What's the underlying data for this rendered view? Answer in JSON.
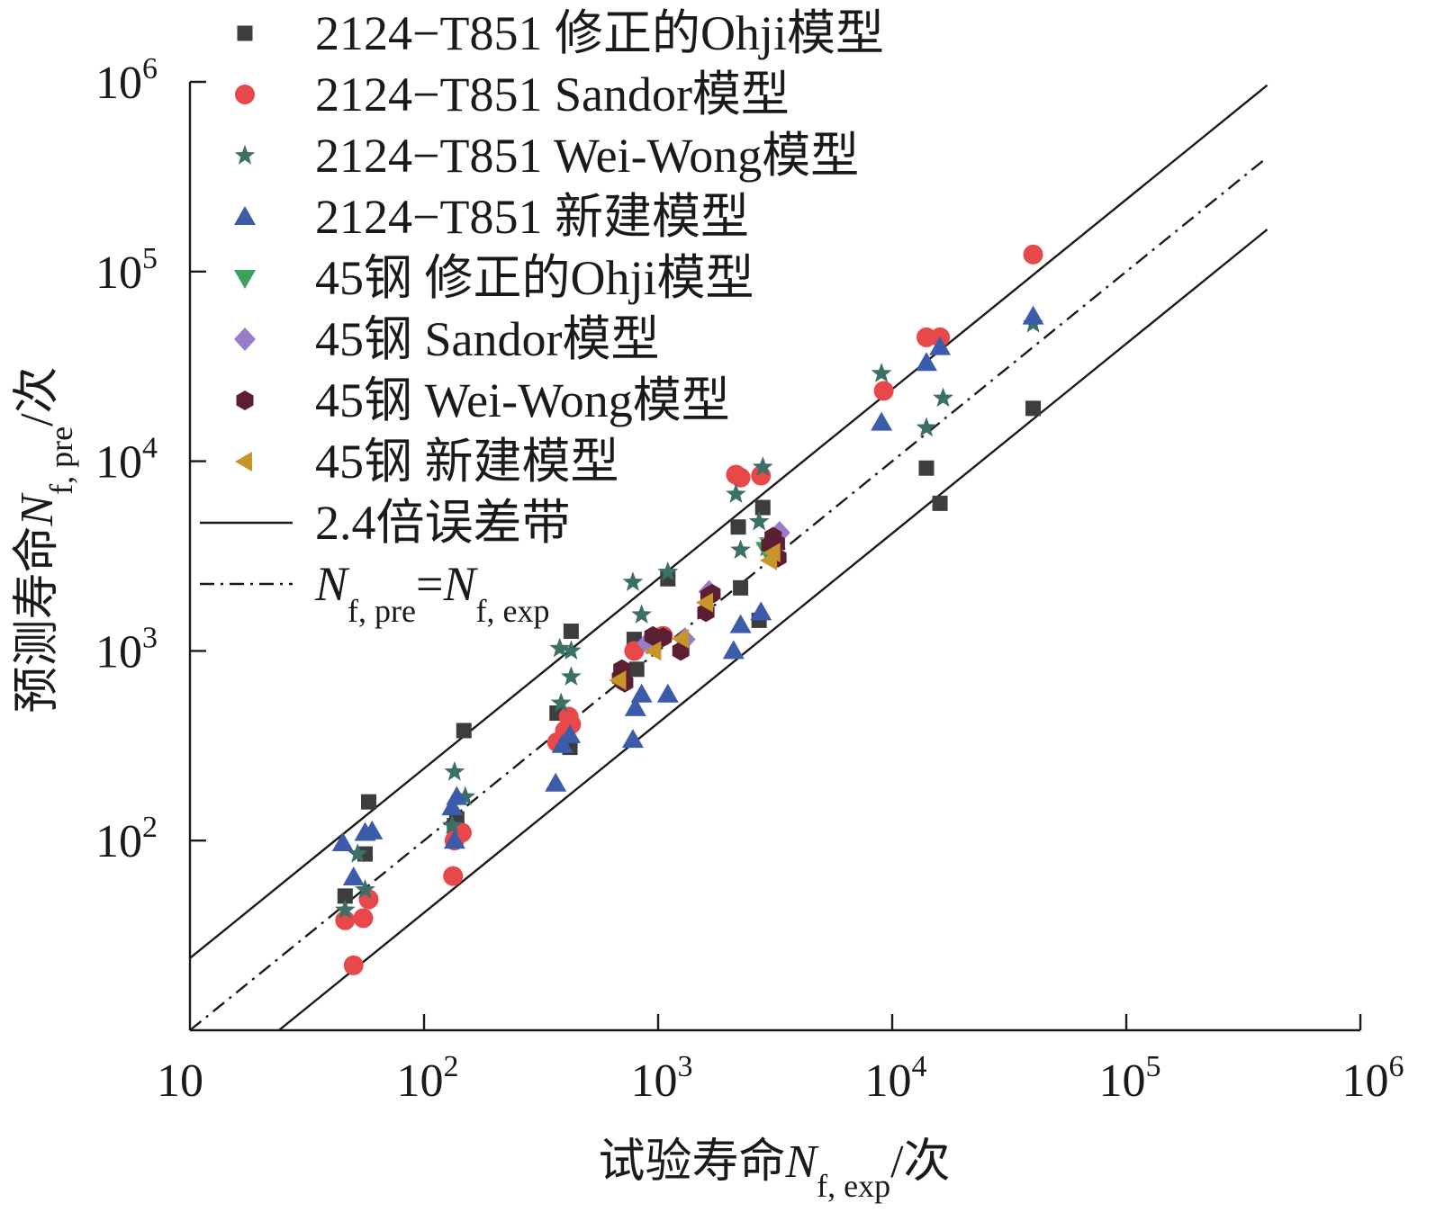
{
  "chart_data": {
    "type": "scatter",
    "scale": "log-log",
    "xlim": [
      10,
      1000000
    ],
    "ylim": [
      10,
      1000000
    ],
    "x_ticks": [
      10,
      100,
      1000,
      10000,
      100000,
      1000000
    ],
    "y_ticks": [
      100,
      1000,
      10000,
      100000,
      1000000
    ],
    "x_tick_labels": [
      {
        "base": "10",
        "exp": ""
      },
      {
        "base": "10",
        "exp": "2"
      },
      {
        "base": "10",
        "exp": "3"
      },
      {
        "base": "10",
        "exp": "4"
      },
      {
        "base": "10",
        "exp": "5"
      },
      {
        "base": "10",
        "exp": "6"
      }
    ],
    "y_tick_labels": [
      {
        "base": "10",
        "exp": "2"
      },
      {
        "base": "10",
        "exp": "3"
      },
      {
        "base": "10",
        "exp": "4"
      },
      {
        "base": "10",
        "exp": "5"
      },
      {
        "base": "10",
        "exp": "6"
      }
    ],
    "xlabel": {
      "prefix": "试验寿命",
      "var": "N",
      "sub": "f, exp",
      "suffix": "/次"
    },
    "ylabel": {
      "prefix": "预测寿命",
      "var": "N",
      "sub": "f, pre",
      "suffix": "/次"
    },
    "legend_position": "top-left",
    "reference_lines": [
      {
        "legend_text": "2.4倍误差带",
        "style": "solid",
        "color": "#1a1a1a",
        "factor": 2.4
      },
      {
        "legend_text": "",
        "legend_var1": "N",
        "legend_sub1": "f, pre",
        "legend_eq": "=",
        "legend_var2": "N",
        "legend_sub2": "f, exp",
        "style": "dashdot",
        "color": "#1a1a1a",
        "factor": 1.0
      },
      {
        "legend_text": "",
        "style": "solid",
        "color": "#1a1a1a",
        "factor": 0.4167
      }
    ],
    "series": [
      {
        "name": "2124−T851 修正的Ohji模型",
        "marker": "square",
        "color": "#3d3d3d",
        "points": [
          [
            46,
            51
          ],
          [
            56,
            85
          ],
          [
            58,
            160
          ],
          [
            148,
            380
          ],
          [
            135,
            120
          ],
          [
            138,
            130
          ],
          [
            370,
            470
          ],
          [
            425,
            1270
          ],
          [
            420,
            310
          ],
          [
            790,
            1150
          ],
          [
            810,
            800
          ],
          [
            1100,
            2400
          ],
          [
            2200,
            4500
          ],
          [
            2250,
            2150
          ],
          [
            2800,
            5700
          ],
          [
            2700,
            1450
          ],
          [
            14000,
            9200
          ],
          [
            16000,
            6000
          ],
          [
            40000,
            19000
          ]
        ]
      },
      {
        "name": "2124−T851 Sandor模型",
        "marker": "circle",
        "color": "#e8484a",
        "points": [
          [
            46,
            38
          ],
          [
            50,
            22
          ],
          [
            55,
            39
          ],
          [
            58,
            49
          ],
          [
            133,
            65
          ],
          [
            135,
            100
          ],
          [
            145,
            110
          ],
          [
            370,
            330
          ],
          [
            400,
            380
          ],
          [
            415,
            450
          ],
          [
            425,
            410
          ],
          [
            790,
            1000
          ],
          [
            1050,
            1200
          ],
          [
            2150,
            8500
          ],
          [
            2250,
            8200
          ],
          [
            2750,
            8400
          ],
          [
            9200,
            23500
          ],
          [
            14000,
            45000
          ],
          [
            16000,
            45000
          ],
          [
            40000,
            123000
          ]
        ]
      },
      {
        "name": "2124−T851 Wei-Wong模型",
        "marker": "star",
        "color": "#3c7066",
        "points": [
          [
            46,
            43
          ],
          [
            52,
            85
          ],
          [
            56,
            55
          ],
          [
            132,
            120
          ],
          [
            135,
            230
          ],
          [
            150,
            170
          ],
          [
            380,
            1030
          ],
          [
            385,
            530
          ],
          [
            425,
            1000
          ],
          [
            425,
            730
          ],
          [
            780,
            2300
          ],
          [
            850,
            1550
          ],
          [
            1100,
            2600
          ],
          [
            2150,
            6700
          ],
          [
            2250,
            3400
          ],
          [
            2800,
            9300
          ],
          [
            2700,
            4800
          ],
          [
            2900,
            3500
          ],
          [
            9000,
            29000
          ],
          [
            14000,
            15000
          ],
          [
            16500,
            21500
          ],
          [
            40000,
            53000
          ]
        ]
      },
      {
        "name": "2124−T851 新建模型",
        "marker": "triangle-up",
        "color": "#3c5cab",
        "points": [
          [
            45,
            97
          ],
          [
            50,
            64
          ],
          [
            56,
            110
          ],
          [
            60,
            112
          ],
          [
            135,
            100
          ],
          [
            132,
            150
          ],
          [
            138,
            170
          ],
          [
            365,
            200
          ],
          [
            390,
            320
          ],
          [
            420,
            360
          ],
          [
            780,
            340
          ],
          [
            800,
            500
          ],
          [
            850,
            590
          ],
          [
            1100,
            590
          ],
          [
            2100,
            1000
          ],
          [
            2250,
            1370
          ],
          [
            2750,
            1600
          ],
          [
            9000,
            16000
          ],
          [
            14000,
            33000
          ],
          [
            16000,
            40000
          ],
          [
            40000,
            58000
          ]
        ]
      },
      {
        "name": "45钢 修正的Ohji模型",
        "marker": "triangle-down",
        "color": "#3e9f5b",
        "points": [
          [
            2900,
            3400
          ],
          [
            3100,
            3200
          ],
          [
            3000,
            3600
          ]
        ]
      },
      {
        "name": "45钢 Sandor模型",
        "marker": "diamond",
        "color": "#9a7cc8",
        "points": [
          [
            900,
            1100
          ],
          [
            1300,
            1150
          ],
          [
            1650,
            2050
          ],
          [
            3300,
            4200
          ]
        ]
      },
      {
        "name": "45钢 Wei-Wong模型",
        "marker": "hexagon",
        "color": "#5c1e32",
        "points": [
          [
            700,
            800
          ],
          [
            690,
            720
          ],
          [
            720,
            680
          ],
          [
            950,
            1200
          ],
          [
            1050,
            1180
          ],
          [
            1250,
            1000
          ],
          [
            1600,
            1600
          ],
          [
            1650,
            1950
          ],
          [
            1700,
            2000
          ],
          [
            3000,
            3600
          ],
          [
            3100,
            4000
          ],
          [
            3250,
            3100
          ],
          [
            3200,
            3700
          ]
        ]
      },
      {
        "name": "45钢 新建模型",
        "marker": "triangle-left",
        "color": "#c8952a",
        "points": [
          [
            680,
            700
          ],
          [
            960,
            1000
          ],
          [
            1260,
            1160
          ],
          [
            1600,
            1800
          ],
          [
            3000,
            3000
          ],
          [
            3100,
            3300
          ]
        ]
      }
    ]
  }
}
